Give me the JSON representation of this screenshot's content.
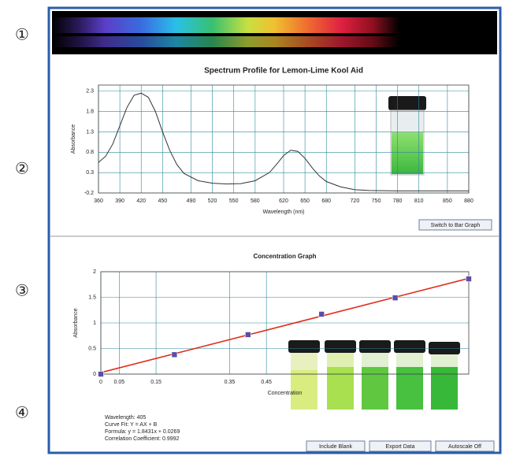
{
  "markers": [
    "①",
    "②",
    "③",
    "④"
  ],
  "chart_data": [
    {
      "type": "line",
      "title": "Spectrum Profile for Lemon-Lime Kool Aid",
      "x_label": "Wavelength (nm)",
      "y_label": "Absorbance",
      "x": [
        360,
        370,
        380,
        390,
        400,
        410,
        420,
        430,
        440,
        450,
        460,
        470,
        480,
        500,
        520,
        540,
        560,
        580,
        600,
        610,
        620,
        630,
        640,
        650,
        660,
        670,
        680,
        700,
        720,
        740,
        780,
        820,
        880
      ],
      "values": [
        0.55,
        0.7,
        1.0,
        1.45,
        1.9,
        2.2,
        2.25,
        2.15,
        1.8,
        1.3,
        0.85,
        0.5,
        0.28,
        0.1,
        0.04,
        0.02,
        0.03,
        0.1,
        0.3,
        0.5,
        0.72,
        0.85,
        0.82,
        0.65,
        0.42,
        0.22,
        0.08,
        -0.05,
        -0.12,
        -0.14,
        -0.15,
        -0.15,
        -0.15
      ],
      "color": "#333333",
      "xlim": [
        360,
        880
      ],
      "xticks": [
        360,
        390,
        420,
        450,
        490,
        520,
        550,
        580,
        620,
        650,
        680,
        720,
        750,
        780,
        810,
        850,
        880
      ],
      "ylim": [
        -0.2,
        2.45
      ],
      "yticks": [
        2.3,
        1.8,
        1.3,
        0.8,
        0.3,
        -0.2
      ],
      "grid": true
    },
    {
      "type": "scatter",
      "title": "Concentration Graph",
      "x_label": "Concentration",
      "y_label": "Absorbance",
      "x": [
        0,
        0.2,
        0.4,
        0.6,
        0.8,
        1.0
      ],
      "values": [
        0,
        0.38,
        0.77,
        1.17,
        1.49,
        1.86
      ],
      "color": "#5a4fa8",
      "fit": {
        "x": [
          0,
          1.0
        ],
        "values": [
          0.03,
          1.87
        ],
        "color": "#e0301e"
      },
      "xlim": [
        0,
        1.0
      ],
      "xticks": [
        0,
        0.05,
        0.15,
        0.35,
        0.45
      ],
      "ylim": [
        0,
        2
      ],
      "yticks": [
        0,
        0.5,
        1,
        1.5,
        2
      ],
      "grid": true
    }
  ],
  "info": [
    "Wavelength: 405",
    "Curve Fit: Y = AX + B",
    "Formula: y = 1.8431x + 0.0269",
    "Correlation Coefficient: 0.9992"
  ],
  "buttons": {
    "bar_graph": "Switch to Bar Graph",
    "include_blank": "Include Blank",
    "export": "Export Data",
    "autoscale": "Autoscale Off"
  }
}
